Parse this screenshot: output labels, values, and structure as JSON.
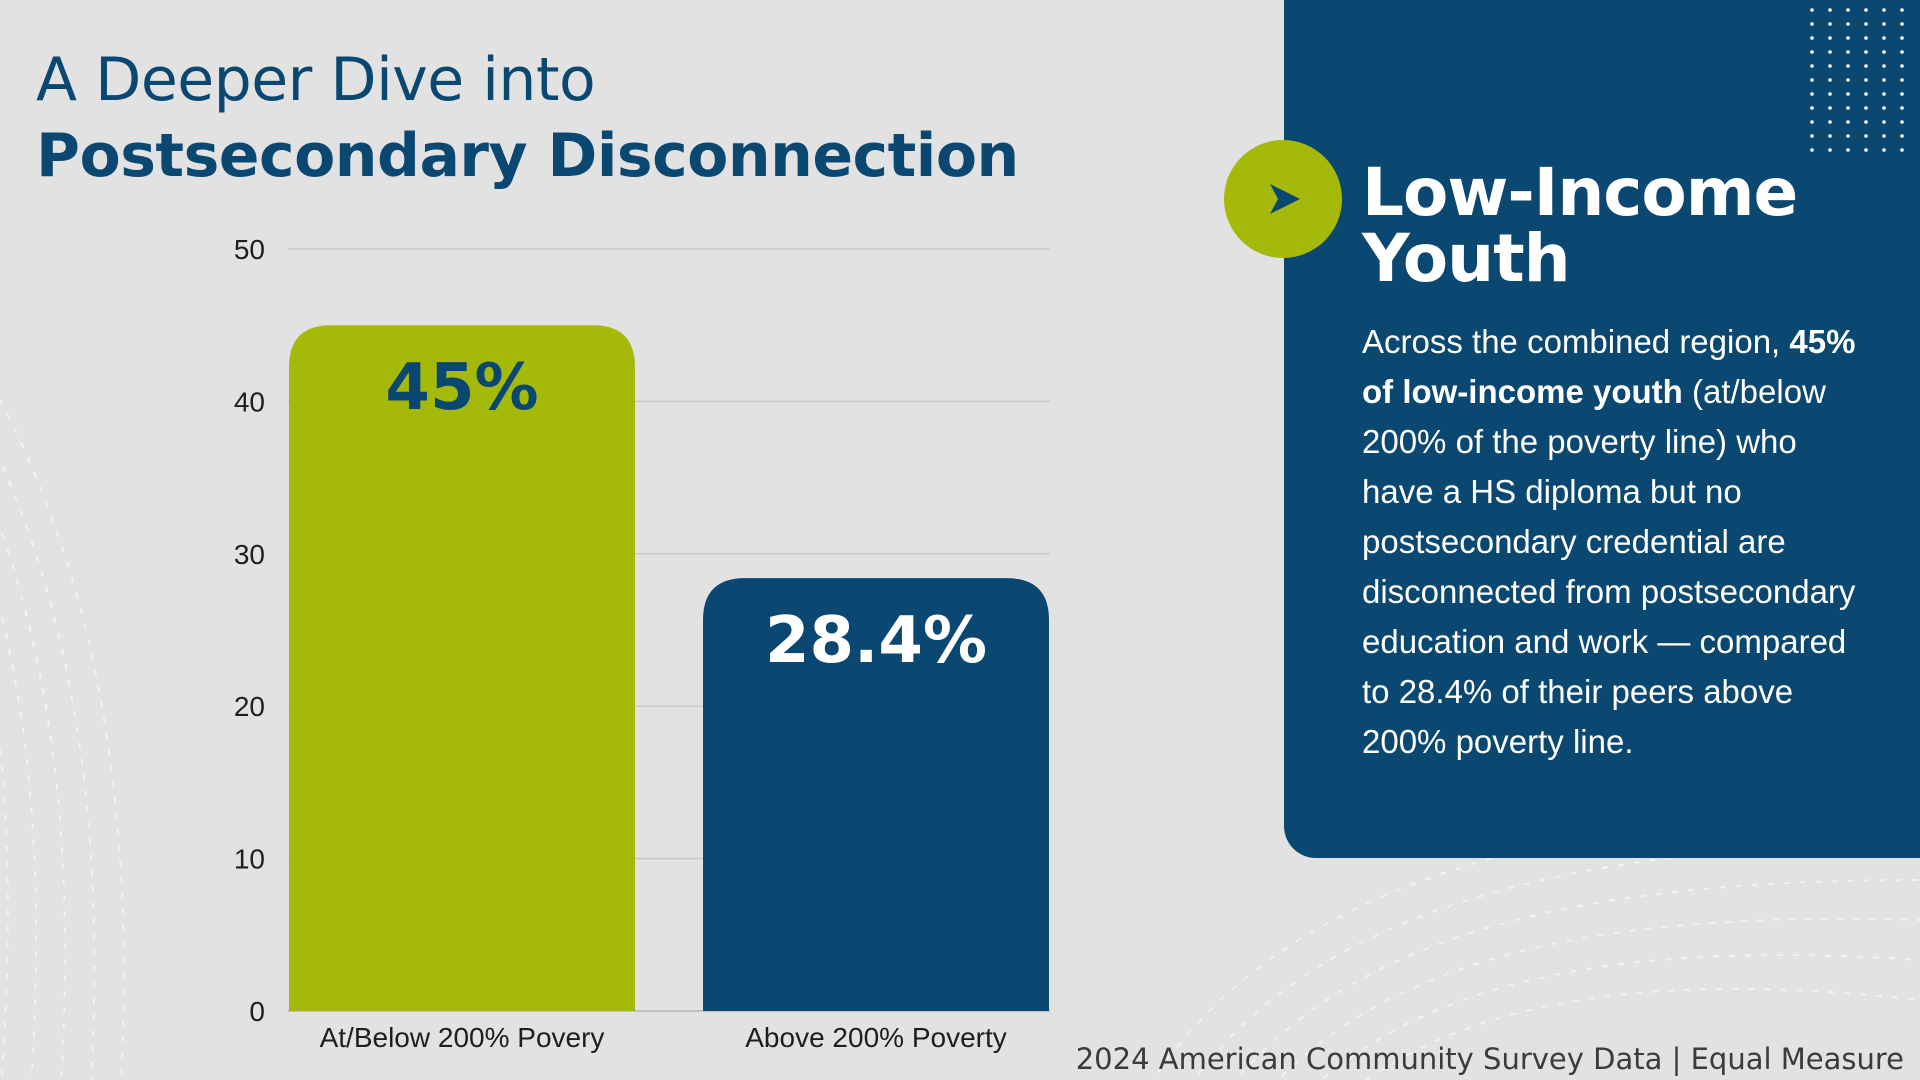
{
  "title": {
    "line1": "A Deeper Dive into",
    "line2": "Postsecondary Disconnection"
  },
  "colors": {
    "background": "#e2e2e2",
    "navy": "#0a4771",
    "lime": "#a5b90b"
  },
  "chart_data": {
    "type": "bar",
    "categories": [
      "At/Below 200% Povery",
      "Above 200% Poverty"
    ],
    "values": [
      45,
      28.4
    ],
    "data_labels": [
      "45%",
      "28.4%"
    ],
    "bar_colors": [
      "#a5b90b",
      "#0a4771"
    ],
    "label_colors": [
      "#0a4771",
      "#ffffff"
    ],
    "y_ticks": [
      0,
      10,
      20,
      30,
      40,
      50
    ],
    "ylim": [
      0,
      50
    ],
    "grid": true,
    "xlabel": "",
    "ylabel": ""
  },
  "panel": {
    "icon": "play-icon",
    "heading_line1": "Low-Income",
    "heading_line2": "Youth",
    "body_intro": "Across the combined region,",
    "body_bold": "45% of low-income youth",
    "body_rest": "(at/below 200% of the poverty line) who have a HS diploma but no postsecondary credential are disconnected from postsecondary education and work — compared to 28.4% of their peers above 200% poverty line."
  },
  "source": "2024 American Community Survey Data | Equal Measure"
}
